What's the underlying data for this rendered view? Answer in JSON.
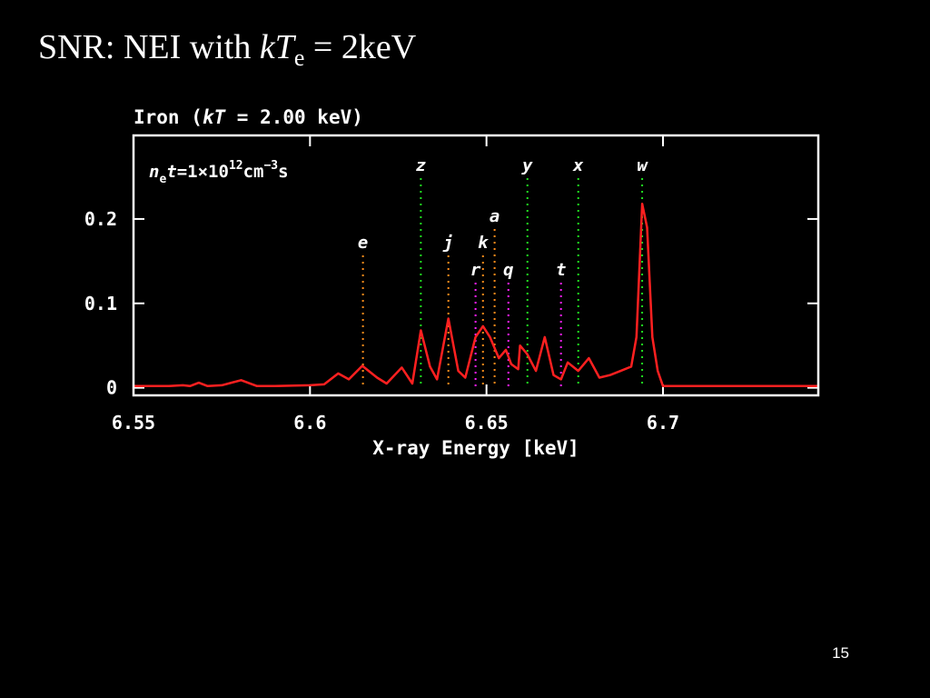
{
  "slide": {
    "title_parts": [
      "SNR: NEI with ",
      "kT",
      "e",
      " = 2keV"
    ],
    "page_number": "15"
  },
  "chart_data": {
    "type": "line",
    "title_parts": [
      "Iron (",
      "kT",
      " = 2.00 keV)"
    ],
    "annotation_parts": [
      "n",
      "e",
      "t",
      "=1×10",
      "12",
      "cm",
      "−3",
      "s"
    ],
    "x_label": "X-ray Energy [keV]",
    "xlim": [
      6.55,
      6.744
    ],
    "ylim": [
      -0.009,
      0.299
    ],
    "xticks": [
      6.55,
      6.6,
      6.65,
      6.7
    ],
    "yticks": [
      0,
      0.1,
      0.2
    ],
    "series": [
      {
        "color": "#ff2020",
        "x": [
          6.55,
          6.56,
          6.564,
          6.566,
          6.5685,
          6.571,
          6.575,
          6.5805,
          6.585,
          6.59,
          6.6,
          6.604,
          6.608,
          6.611,
          6.6148,
          6.619,
          6.6217,
          6.626,
          6.629,
          6.6314,
          6.634,
          6.636,
          6.6392,
          6.642,
          6.644,
          6.6469,
          6.649,
          6.651,
          6.6535,
          6.6555,
          6.657,
          6.659,
          6.6595,
          6.6615,
          6.664,
          6.6665,
          6.669,
          6.6711,
          6.673,
          6.676,
          6.679,
          6.682,
          6.685,
          6.688,
          6.691,
          6.6925,
          6.6941,
          6.6955,
          6.697,
          6.6985,
          6.7,
          6.72,
          6.744
        ],
        "values": [
          0.002,
          0.002,
          0.003,
          0.002,
          0.006,
          0.002,
          0.003,
          0.009,
          0.002,
          0.002,
          0.003,
          0.004,
          0.017,
          0.01,
          0.026,
          0.012,
          0.005,
          0.024,
          0.005,
          0.068,
          0.025,
          0.01,
          0.082,
          0.02,
          0.012,
          0.06,
          0.073,
          0.06,
          0.035,
          0.045,
          0.028,
          0.022,
          0.05,
          0.04,
          0.02,
          0.06,
          0.015,
          0.01,
          0.03,
          0.02,
          0.035,
          0.012,
          0.015,
          0.02,
          0.025,
          0.06,
          0.218,
          0.19,
          0.06,
          0.02,
          0.002,
          0.002,
          0.002
        ]
      }
    ],
    "lines": [
      {
        "label": "e",
        "energy": 6.615,
        "color": "#ff8c1a"
      },
      {
        "label": "z",
        "energy": 6.6314,
        "color": "#20e020"
      },
      {
        "label": "j",
        "energy": 6.6392,
        "color": "#ff8c1a"
      },
      {
        "label": "r",
        "energy": 6.6469,
        "color": "#ff20ff"
      },
      {
        "label": "k",
        "energy": 6.649,
        "color": "#ff8c1a"
      },
      {
        "label": "a",
        "energy": 6.6523,
        "color": "#ff8c1a"
      },
      {
        "label": "q",
        "energy": 6.6562,
        "color": "#ff20ff"
      },
      {
        "label": "y",
        "energy": 6.6616,
        "color": "#20e020"
      },
      {
        "label": "t",
        "energy": 6.6711,
        "color": "#ff20ff"
      },
      {
        "label": "x",
        "energy": 6.676,
        "color": "#20e020"
      },
      {
        "label": "w",
        "energy": 6.6941,
        "color": "#20e020"
      }
    ]
  }
}
